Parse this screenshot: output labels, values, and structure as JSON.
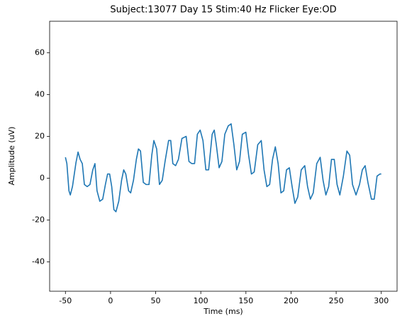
{
  "chart_data": {
    "type": "line",
    "title": "Subject:13077 Day 15 Stim:40 Hz Flicker Eye:OD",
    "x_label": "Time (ms)",
    "y_label": "Amplitude (uV)",
    "color": "#1f77b4",
    "x": [
      -50,
      -48.4,
      -46.1,
      -44.6,
      -42.2,
      -38.3,
      -36,
      -33.7,
      -31.3,
      -29,
      -25.9,
      -22.8,
      -19.7,
      -17.3,
      -15,
      -11.9,
      -8.7,
      -5.7,
      -3.3,
      -1,
      1.3,
      3.7,
      6,
      9.1,
      12.2,
      14.6,
      16.9,
      20,
      22.3,
      25.4,
      28.6,
      30.9,
      33.2,
      36.3,
      39.4,
      42.6,
      45.7,
      48,
      51.1,
      54.2,
      57.3,
      60.4,
      64.3,
      66.7,
      69,
      72.1,
      75.2,
      79.1,
      83.8,
      86.9,
      90,
      93.1,
      96.2,
      99.3,
      102.4,
      105.6,
      108.7,
      112.6,
      114.9,
      117.2,
      120.3,
      123.4,
      126.6,
      130.4,
      133.6,
      136.7,
      139.8,
      142.9,
      146,
      149.9,
      153,
      156.1,
      159.2,
      163.1,
      167,
      170.1,
      173.2,
      176.3,
      179.5,
      182.6,
      185.7,
      188.8,
      191.9,
      195,
      198.1,
      201.2,
      204.3,
      207.4,
      211.3,
      215.2,
      218.3,
      221.4,
      224.6,
      228.5,
      232.3,
      235.5,
      238.6,
      241.7,
      244.8,
      247.9,
      251,
      254.1,
      258,
      261.9,
      265,
      268.1,
      272,
      275.9,
      279,
      282.1,
      285.2,
      289.1,
      292.2,
      295.3,
      298.4,
      300
    ],
    "values": [
      10,
      7,
      -6,
      -8,
      -4,
      7.5,
      12.5,
      9,
      7,
      -3,
      -4,
      -3,
      4,
      7,
      -6,
      -11,
      -10,
      -3,
      2,
      2,
      -4,
      -15,
      -16,
      -11,
      -1,
      4,
      2,
      -6,
      -7,
      -1,
      9,
      14,
      13,
      -2,
      -3,
      -3,
      11,
      18,
      14,
      -3,
      -1,
      8,
      18,
      18,
      7,
      6,
      9,
      19,
      20,
      8,
      7,
      7,
      21,
      23,
      18,
      4,
      4,
      21,
      23,
      16,
      5,
      8,
      21,
      25,
      26,
      16,
      4,
      8,
      21,
      22,
      11,
      2,
      3,
      16,
      18,
      4,
      -4,
      -3,
      9,
      15,
      7,
      -7,
      -6,
      4,
      5,
      -4,
      -12,
      -9,
      4,
      6,
      -4,
      -10,
      -7,
      7,
      10,
      -1,
      -8,
      -4,
      9,
      9,
      -3,
      -8,
      1,
      13,
      11,
      -3,
      -8,
      -3,
      4,
      6,
      -2,
      -10,
      -10,
      1,
      2,
      2
    ],
    "xlim": [
      -67.5,
      317.5
    ],
    "ylim": [
      -54,
      75
    ],
    "xticks": [
      -50,
      0,
      50,
      100,
      150,
      200,
      250,
      300
    ],
    "yticks": [
      -40,
      -20,
      0,
      20,
      40,
      60
    ],
    "grid": false
  }
}
